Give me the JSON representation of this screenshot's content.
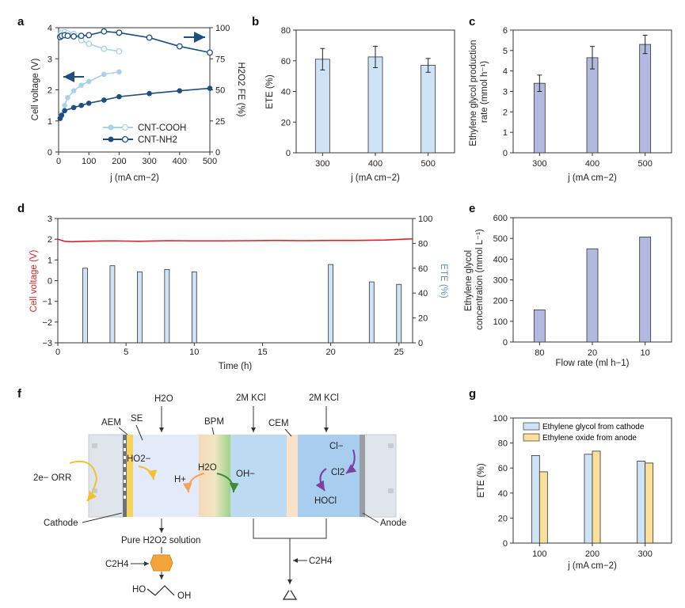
{
  "panel_labels": {
    "a": "a",
    "b": "b",
    "c": "c",
    "d": "d",
    "e": "e",
    "f": "f",
    "g": "g"
  },
  "colors": {
    "cooh": "#a9d2e8",
    "nh2": "#1d4e7e",
    "ete_bar": "#cfe3f6",
    "rate_bar": "#b3b8de",
    "voltage_line": "#d9252a",
    "g_cathode": "#cfe3f6",
    "g_anode": "#fae09a"
  },
  "chart_data": [
    {
      "id": "a",
      "type": "line",
      "xlabel": "j (mA cm−2)",
      "ylabel": "Cell voltage (V)",
      "y2label": "H2O2 FE (%)",
      "xlim": [
        0,
        500
      ],
      "ylim": [
        0,
        4
      ],
      "y2lim": [
        0,
        100
      ],
      "xticks": [
        "0",
        "100",
        "200",
        "300",
        "400",
        "500"
      ],
      "yticks": [
        "0",
        "1",
        "2",
        "3",
        "4"
      ],
      "y2ticks": [
        "0",
        "25",
        "50",
        "75",
        "100"
      ],
      "legend": [
        "CNT-COOH",
        "CNT-NH2"
      ],
      "series": [
        {
          "name": "CNT-COOH",
          "axis": "left",
          "marker": "filled",
          "x": [
            5,
            10,
            20,
            30,
            50,
            75,
            100,
            150,
            200
          ],
          "y": [
            1.1,
            1.2,
            1.5,
            1.75,
            1.97,
            2.15,
            2.27,
            2.5,
            2.58
          ]
        },
        {
          "name": "CNT-COOH",
          "axis": "right",
          "marker": "open",
          "x": [
            5,
            10,
            20,
            30,
            50,
            75,
            100,
            150,
            200
          ],
          "y": [
            93.5,
            96,
            96.5,
            95.5,
            95,
            90,
            87,
            83,
            81
          ]
        },
        {
          "name": "CNT-NH2",
          "axis": "left",
          "marker": "filled",
          "x": [
            5,
            10,
            20,
            50,
            75,
            100,
            150,
            200,
            300,
            400,
            500
          ],
          "y": [
            1.08,
            1.18,
            1.33,
            1.43,
            1.5,
            1.57,
            1.67,
            1.78,
            1.88,
            1.97,
            2.05
          ]
        },
        {
          "name": "CNT-NH2",
          "axis": "right",
          "marker": "open",
          "x": [
            5,
            10,
            20,
            30,
            50,
            75,
            100,
            150,
            200,
            300,
            400,
            500
          ],
          "y": [
            92.5,
            93.5,
            94,
            93.5,
            93,
            93.5,
            94,
            97,
            96,
            92,
            85,
            80
          ]
        }
      ]
    },
    {
      "id": "b",
      "type": "bar",
      "categories": [
        "300",
        "400",
        "500"
      ],
      "values": [
        61,
        62.5,
        57
      ],
      "errors": [
        7,
        7,
        4.5
      ],
      "xlabel": "j (mA cm−2)",
      "ylabel": "ETE (%)",
      "ylim": [
        0,
        80
      ],
      "yticks": [
        "0",
        "20",
        "40",
        "60",
        "80"
      ]
    },
    {
      "id": "c",
      "type": "bar",
      "categories": [
        "300",
        "400",
        "500"
      ],
      "values": [
        3.4,
        4.65,
        5.3
      ],
      "errors": [
        0.4,
        0.55,
        0.45
      ],
      "xlabel": "j (mA cm−2)",
      "ylabel": "Ethylene glycol production rate (mmol h−1)",
      "ylim": [
        0,
        6
      ],
      "yticks": [
        "0",
        "1",
        "2",
        "3",
        "4",
        "5",
        "6"
      ]
    },
    {
      "id": "d",
      "type": "bar",
      "xlabel": "Time (h)",
      "ylabel": "Cell voltage (V)",
      "y2label": "ETE (%)",
      "xlim": [
        0,
        26
      ],
      "ylim": [
        -3,
        3
      ],
      "y2lim": [
        0,
        100
      ],
      "xticks": [
        "0",
        "5",
        "10",
        "15",
        "20",
        "25"
      ],
      "yticks": [
        "−3",
        "−2",
        "−1",
        "0",
        "1",
        "2",
        "3"
      ],
      "y2ticks": [
        "0",
        "20",
        "40",
        "60",
        "80",
        "100"
      ],
      "ete_bars": {
        "x": [
          2,
          4,
          6,
          8,
          10,
          20,
          23,
          25
        ],
        "values": [
          60,
          62,
          57,
          59,
          57,
          63,
          49,
          47
        ]
      },
      "voltage_line": {
        "x": [
          0,
          0.5,
          1,
          2,
          4,
          6,
          8,
          10,
          12,
          14,
          16,
          18,
          20,
          22,
          24,
          25,
          26
        ],
        "y": [
          2.0,
          1.9,
          1.88,
          1.9,
          1.92,
          1.9,
          1.93,
          1.92,
          1.92,
          1.93,
          1.94,
          1.93,
          1.94,
          1.94,
          1.96,
          1.99,
          2.02
        ]
      }
    },
    {
      "id": "e",
      "type": "bar",
      "categories": [
        "80",
        "20",
        "10"
      ],
      "values": [
        155,
        450,
        507
      ],
      "xlabel": "Flow rate (ml h−1)",
      "ylabel": "Ethylene glycol concentration (mmol L−1)",
      "ylim": [
        0,
        600
      ],
      "yticks": [
        "0",
        "100",
        "200",
        "300",
        "400",
        "500",
        "600"
      ]
    },
    {
      "id": "g",
      "type": "bar",
      "categories": [
        "100",
        "200",
        "300"
      ],
      "series": [
        {
          "name": "Ethylene glycol from cathode",
          "values": [
            70,
            71,
            65.5
          ]
        },
        {
          "name": "Ethylene oxide from anode",
          "values": [
            57,
            73.5,
            64
          ]
        }
      ],
      "xlabel": "j (mA cm−2)",
      "ylabel": "ETE (%)",
      "ylim": [
        0,
        100
      ],
      "yticks": [
        "0",
        "20",
        "40",
        "60",
        "80",
        "100"
      ]
    }
  ],
  "diagram": {
    "h2o_top": "H2O",
    "kcl_1": "2M KCl",
    "kcl_2": "2M KCl",
    "aem": "AEM",
    "se": "SE",
    "bpm": "BPM",
    "cem": "CEM",
    "orr": "2e− ORR",
    "ho2": "HO2−",
    "hplus": "H+",
    "h2o_mid": "H2O",
    "ohminus": "OH−",
    "clminus": "Cl−",
    "cl2": "Cl2",
    "hocl": "HOCl",
    "cathode": "Cathode",
    "anode": "Anode",
    "pure": "Pure H2O2 solution",
    "c2h4_left": "C2H4",
    "c2h4_right": "C2H4",
    "oh_left": "HO",
    "oh_right": "OH"
  }
}
